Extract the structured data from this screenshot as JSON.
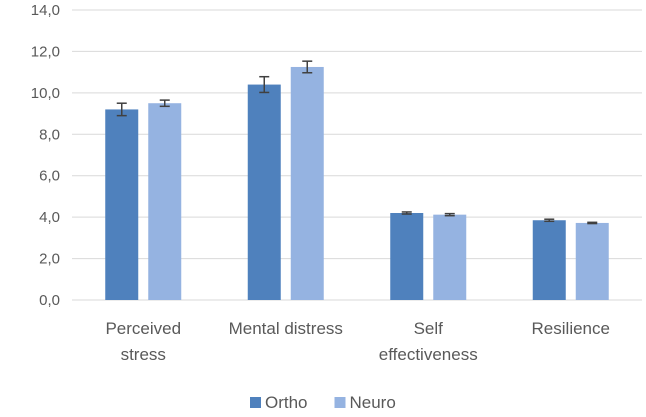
{
  "chart_data": {
    "type": "bar",
    "title": "",
    "xlabel": "",
    "ylabel": "",
    "ylim": [
      0,
      14
    ],
    "yticks": [
      "0,0",
      "2,0",
      "4,0",
      "6,0",
      "8,0",
      "10,0",
      "12,0",
      "14,0"
    ],
    "grid": true,
    "legend_position": "bottom",
    "categories": [
      [
        "Perceived",
        "stress"
      ],
      [
        "Mental distress"
      ],
      [
        "Self",
        "effectiveness"
      ],
      [
        "Resilience"
      ]
    ],
    "series": [
      {
        "name": "Ortho",
        "color": "#4f81bd",
        "values": [
          9.2,
          10.4,
          4.2,
          3.85
        ],
        "errors": [
          0.3,
          0.38,
          0.05,
          0.05
        ]
      },
      {
        "name": "Neuro",
        "color": "#95b3e1",
        "values": [
          9.5,
          11.25,
          4.12,
          3.72
        ],
        "errors": [
          0.15,
          0.28,
          0.05,
          0.03
        ]
      }
    ]
  }
}
